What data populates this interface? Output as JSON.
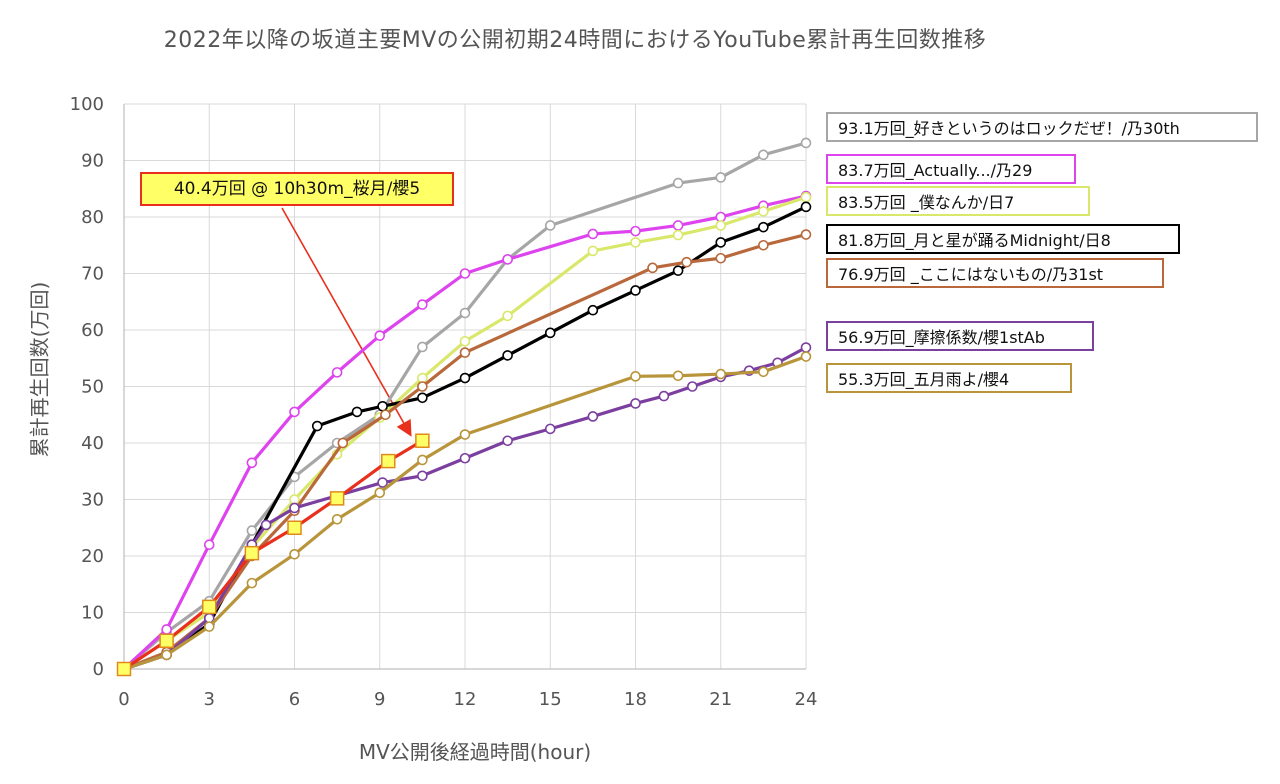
{
  "chart_data": {
    "type": "line",
    "title": "2022年以降の坂道主要MVの公開初期24時間におけるYouTube累計再生回数推移",
    "xlabel": "MV公開後経過時間(hour)",
    "ylabel": "累計再生回数(万回)",
    "xlim": [
      0,
      24
    ],
    "ylim": [
      0,
      100
    ],
    "xticks": [
      0,
      3,
      6,
      9,
      12,
      15,
      18,
      21,
      24
    ],
    "yticks": [
      0,
      10,
      20,
      30,
      40,
      50,
      60,
      70,
      80,
      90,
      100
    ],
    "grid": true,
    "legend_position": "right",
    "series": [
      {
        "name": "93.1万回_好きというのはロックだぜ！/乃30th",
        "color": "#a6a6a6",
        "points": [
          [
            0,
            0
          ],
          [
            1.5,
            6.5
          ],
          [
            3,
            12
          ],
          [
            4.5,
            24.5
          ],
          [
            6,
            34
          ],
          [
            7.5,
            40
          ],
          [
            9,
            45
          ],
          [
            10.5,
            57
          ],
          [
            12,
            63
          ],
          [
            13.5,
            72.5
          ],
          [
            15,
            78.5
          ],
          [
            19.5,
            86
          ],
          [
            21,
            87
          ],
          [
            22.5,
            91
          ],
          [
            24,
            93.1
          ]
        ]
      },
      {
        "name": "83.7万回_Actually.../乃29",
        "color": "#dd44ee",
        "points": [
          [
            0,
            0
          ],
          [
            1.5,
            7
          ],
          [
            3,
            22
          ],
          [
            4.5,
            36.5
          ],
          [
            6,
            45.5
          ],
          [
            7.5,
            52.5
          ],
          [
            9,
            59
          ],
          [
            10.5,
            64.5
          ],
          [
            12,
            70
          ],
          [
            13.5,
            72.5
          ],
          [
            16.5,
            77
          ],
          [
            18,
            77.5
          ],
          [
            19.5,
            78.5
          ],
          [
            21,
            80
          ],
          [
            22.5,
            82
          ],
          [
            24,
            83.7
          ]
        ]
      },
      {
        "name": "83.5万回 _僕なんか/日7",
        "color": "#d9e86a",
        "points": [
          [
            0,
            0
          ],
          [
            1.5,
            5
          ],
          [
            3,
            10
          ],
          [
            4.5,
            21.5
          ],
          [
            6,
            30
          ],
          [
            7.5,
            38
          ],
          [
            9,
            44.5
          ],
          [
            10.5,
            51.5
          ],
          [
            12,
            58
          ],
          [
            13.5,
            62.5
          ],
          [
            16.5,
            74
          ],
          [
            18,
            75.5
          ],
          [
            19.5,
            76.8
          ],
          [
            21,
            78.5
          ],
          [
            22.5,
            81
          ],
          [
            24,
            83.5
          ]
        ]
      },
      {
        "name": "81.8万回_月と星が踊るMidnight/日8",
        "color": "#000000",
        "points": [
          [
            0,
            0
          ],
          [
            1.5,
            2.5
          ],
          [
            3,
            8
          ],
          [
            4.5,
            22
          ],
          [
            6.8,
            43
          ],
          [
            8.2,
            45.5
          ],
          [
            9.1,
            46.5
          ],
          [
            10.5,
            48
          ],
          [
            12,
            51.5
          ],
          [
            13.5,
            55.5
          ],
          [
            15,
            59.5
          ],
          [
            16.5,
            63.5
          ],
          [
            18,
            67
          ],
          [
            19.5,
            70.5
          ],
          [
            21,
            75.5
          ],
          [
            22.5,
            78.2
          ],
          [
            24,
            81.8
          ]
        ]
      },
      {
        "name": "76.9万回 _ここにはないもの/乃31st",
        "color": "#b8683a",
        "points": [
          [
            0,
            0
          ],
          [
            1.5,
            3
          ],
          [
            3,
            9
          ],
          [
            4.5,
            20
          ],
          [
            6,
            28
          ],
          [
            7.7,
            40
          ],
          [
            9.2,
            45
          ],
          [
            10.5,
            50
          ],
          [
            12,
            56
          ],
          [
            18.6,
            71
          ],
          [
            19.8,
            72
          ],
          [
            21,
            72.7
          ],
          [
            22.5,
            75
          ],
          [
            24,
            76.9
          ]
        ]
      },
      {
        "name": "56.9万回_摩擦係数/櫻1stAb",
        "color": "#7b3fa0",
        "points": [
          [
            0,
            0
          ],
          [
            1.5,
            2.5
          ],
          [
            3,
            9
          ],
          [
            4.5,
            22
          ],
          [
            5,
            25.5
          ],
          [
            6,
            28.5
          ],
          [
            9.1,
            33
          ],
          [
            10.5,
            34.2
          ],
          [
            12,
            37.3
          ],
          [
            13.5,
            40.4
          ],
          [
            15,
            42.5
          ],
          [
            16.5,
            44.7
          ],
          [
            18,
            47
          ],
          [
            19,
            48.3
          ],
          [
            20,
            50
          ],
          [
            21,
            51.7
          ],
          [
            22,
            52.8
          ],
          [
            23,
            54.2
          ],
          [
            24,
            56.9
          ]
        ]
      },
      {
        "name": "55.3万回_五月雨よ/櫻4",
        "color": "#b8953a",
        "points": [
          [
            0,
            0
          ],
          [
            1.5,
            2.5
          ],
          [
            3,
            7.5
          ],
          [
            4.5,
            15.2
          ],
          [
            6,
            20.3
          ],
          [
            7.5,
            26.5
          ],
          [
            9,
            31.2
          ],
          [
            10.5,
            37
          ],
          [
            12,
            41.5
          ],
          [
            18,
            51.8
          ],
          [
            19.5,
            51.9
          ],
          [
            21,
            52.2
          ],
          [
            22.5,
            52.6
          ],
          [
            24,
            55.3
          ]
        ]
      },
      {
        "name": "40.4万回 @ 10h30m_桜月/櫻5",
        "color": "#e8301c",
        "marker": "square",
        "points": [
          [
            0,
            0
          ],
          [
            1.5,
            5
          ],
          [
            3,
            11
          ],
          [
            4.5,
            20.5
          ],
          [
            6,
            25
          ],
          [
            7.5,
            30.2
          ],
          [
            9.3,
            36.8
          ],
          [
            10.5,
            40.4
          ]
        ]
      }
    ]
  },
  "legend": [
    {
      "label": "93.1万回_好きというのはロックだぜ！/乃30th",
      "color": "#a6a6a6"
    },
    {
      "label": "83.7万回_Actually.../乃29",
      "color": "#dd44ee"
    },
    {
      "label": "83.5万回 _僕なんか/日7",
      "color": "#d9e86a"
    },
    {
      "label": "81.8万回_月と星が踊るMidnight/日8",
      "color": "#000000"
    },
    {
      "label": "76.9万回 _ここにはないもの/乃31st",
      "color": "#b8683a"
    },
    {
      "label": "56.9万回_摩擦係数/櫻1stAb",
      "color": "#7b3fa0"
    },
    {
      "label": "55.3万回_五月雨よ/櫻4",
      "color": "#b8953a"
    }
  ],
  "callout": {
    "label": "40.4万回 @ 10h30m_桜月/櫻5",
    "color": "#e8301c",
    "fill": "#ffff66"
  }
}
